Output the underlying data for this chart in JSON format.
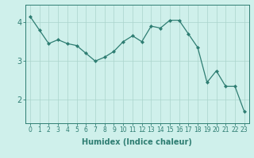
{
  "x": [
    0,
    1,
    2,
    3,
    4,
    5,
    6,
    7,
    8,
    9,
    10,
    11,
    12,
    13,
    14,
    15,
    16,
    17,
    18,
    19,
    20,
    21,
    22,
    23
  ],
  "y": [
    4.15,
    3.8,
    3.45,
    3.55,
    3.45,
    3.4,
    3.2,
    3.0,
    3.1,
    3.25,
    3.5,
    3.65,
    3.5,
    3.9,
    3.85,
    4.05,
    4.05,
    3.7,
    3.35,
    2.45,
    2.75,
    2.35,
    2.35,
    1.7
  ],
  "line_color": "#2e7d72",
  "marker": "D",
  "marker_size": 2.0,
  "bg_color": "#cff0eb",
  "grid_color": "#aad4cc",
  "xlabel": "Humidex (Indice chaleur)",
  "xlabel_weight": "bold",
  "xlim": [
    -0.5,
    23.5
  ],
  "ylim": [
    1.4,
    4.45
  ],
  "yticks": [
    2,
    3,
    4
  ],
  "xticks": [
    0,
    1,
    2,
    3,
    4,
    5,
    6,
    7,
    8,
    9,
    10,
    11,
    12,
    13,
    14,
    15,
    16,
    17,
    18,
    19,
    20,
    21,
    22,
    23
  ],
  "tick_color": "#2e7d72",
  "axis_color": "#2e7d72",
  "label_fontsize": 5.5,
  "xlabel_fontsize": 7.0,
  "ytick_fontsize": 7.0
}
